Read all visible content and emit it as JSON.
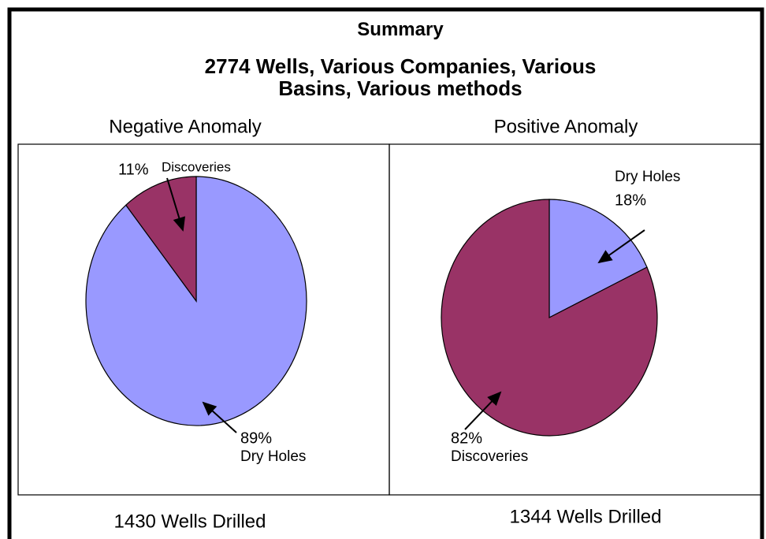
{
  "header": {
    "title": "Summary",
    "subtitle": "2774 Wells, Various Companies, Various Basins, Various methods"
  },
  "chart_data": [
    {
      "type": "pie",
      "title": "Negative Anomaly",
      "categories": [
        "Dry Holes",
        "Discoveries"
      ],
      "values": [
        89,
        11
      ],
      "value_labels": [
        "89%",
        "11%"
      ],
      "colors": [
        "#9999ff",
        "#993366"
      ],
      "annotation": "1430 Wells Drilled"
    },
    {
      "type": "pie",
      "title": "Positive Anomaly",
      "categories": [
        "Dry Holes",
        "Discoveries"
      ],
      "values": [
        18,
        82
      ],
      "value_labels": [
        "18%",
        "82%"
      ],
      "colors": [
        "#9999ff",
        "#993366"
      ],
      "annotation": "1344 Wells Drilled"
    }
  ]
}
